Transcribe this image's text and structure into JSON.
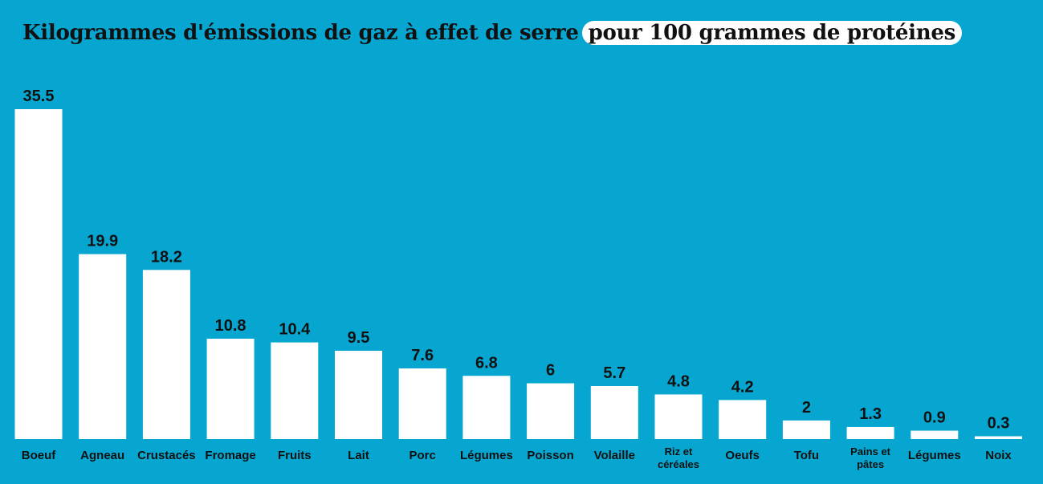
{
  "chart_data": {
    "type": "bar",
    "title": "Kilogrammes d'émissions de gaz à effet de serre",
    "title_highlight": "pour 100 grammes de protéines",
    "categories": [
      "Boeuf",
      "Agneau",
      "Crustacés",
      "Fromage",
      "Fruits",
      "Lait",
      "Porc",
      "Légumes",
      "Poisson",
      "Volaille",
      "Riz et céréales",
      "Oeufs",
      "Tofu",
      "Pains et pâtes",
      "Légumes",
      "Noix"
    ],
    "values": [
      35.5,
      19.9,
      18.2,
      10.8,
      10.4,
      9.5,
      7.6,
      6.8,
      6,
      5.7,
      4.8,
      4.2,
      2,
      1.3,
      0.9,
      0.3
    ],
    "color": "#ffffff",
    "background": "#07a6d1"
  }
}
